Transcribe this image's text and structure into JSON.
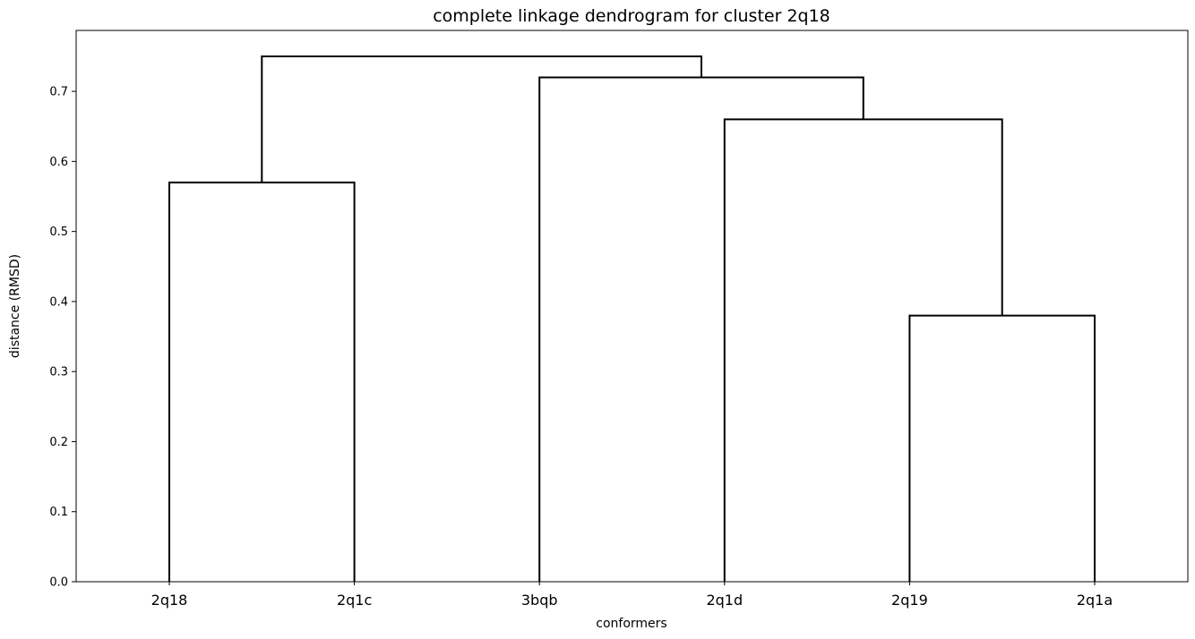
{
  "chart_data": {
    "type": "dendrogram",
    "title": "complete linkage dendrogram for cluster 2q18",
    "xlabel": "conformers",
    "ylabel": "distance (RMSD)",
    "ylim": [
      0,
      0.787
    ],
    "yticks": [
      "0.0",
      "0.1",
      "0.2",
      "0.3",
      "0.4",
      "0.5",
      "0.6",
      "0.7"
    ],
    "ytick_values": [
      0.0,
      0.1,
      0.2,
      0.3,
      0.4,
      0.5,
      0.6,
      0.7
    ],
    "leaves": [
      "2q18",
      "2q1c",
      "3bqb",
      "2q1d",
      "2q19",
      "2q1a"
    ],
    "merges": [
      {
        "left": "2q19",
        "right": "2q1a",
        "height": 0.38
      },
      {
        "left": "2q18",
        "right": "2q1c",
        "height": 0.57
      },
      {
        "left": "2q1d",
        "right": "2q19 + 2q1a",
        "height": 0.66
      },
      {
        "left": "3bqb",
        "right": "2q1d + 2q19 + 2q1a",
        "height": 0.72
      },
      {
        "left": "2q18 + 2q1c",
        "right": "3bqb + 2q1d + 2q19 + 2q1a",
        "height": 0.75
      }
    ],
    "grid": false,
    "line_color": "#000000"
  }
}
